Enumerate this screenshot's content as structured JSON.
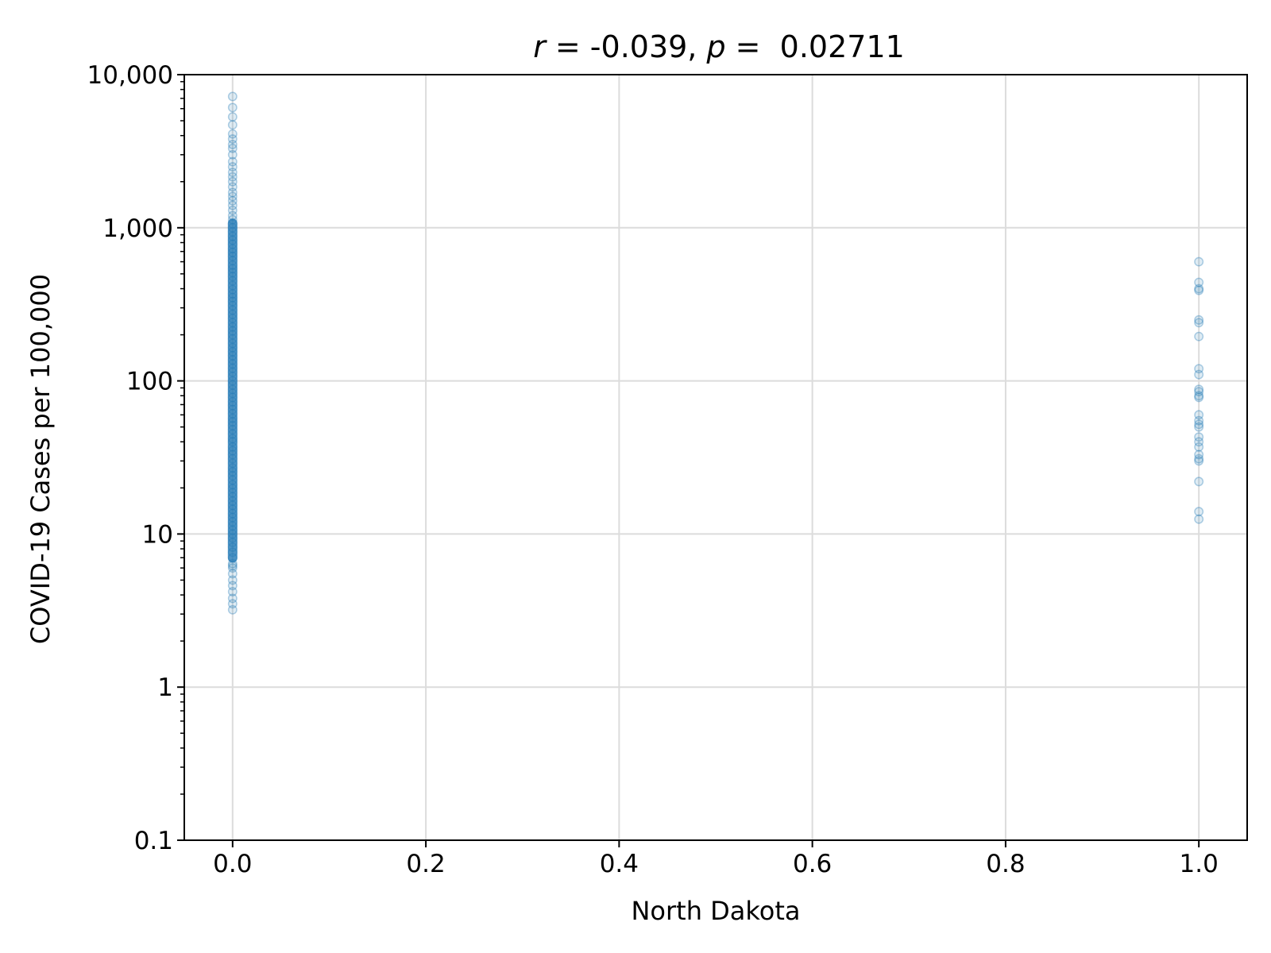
{
  "chart_data": {
    "type": "scatter",
    "title": {
      "r_symbol": "r",
      "r_text": " = -0.039, ",
      "p_symbol": "p",
      "p_text": " =  0.02711"
    },
    "xlabel": "North Dakota",
    "ylabel": "COVID-19 Cases per 100,000",
    "xlim": [
      -0.05,
      1.05
    ],
    "ylim": [
      0.1,
      10000
    ],
    "yscale": "log",
    "grid": true,
    "xticks": [
      {
        "value": 0.0,
        "label": "0.0"
      },
      {
        "value": 0.2,
        "label": "0.2"
      },
      {
        "value": 0.4,
        "label": "0.4"
      },
      {
        "value": 0.6,
        "label": "0.6"
      },
      {
        "value": 0.8,
        "label": "0.8"
      },
      {
        "value": 1.0,
        "label": "1.0"
      }
    ],
    "yticks": [
      {
        "value": 0.1,
        "label": "0.1"
      },
      {
        "value": 1,
        "label": "1"
      },
      {
        "value": 10,
        "label": "10"
      },
      {
        "value": 100,
        "label": "100"
      },
      {
        "value": 1000,
        "label": "1,000"
      },
      {
        "value": 10000,
        "label": "10,000"
      }
    ],
    "marker_color": "#1f77b4",
    "series": [
      {
        "x": 0,
        "y": [
          7200,
          6100,
          5300,
          4700,
          4100,
          3800,
          3500,
          3300,
          3000,
          2700,
          2500,
          2300,
          2150,
          2000,
          1850,
          1700,
          1600,
          1500,
          1400,
          1300,
          1200,
          1130,
          1060,
          1000,
          940,
          880,
          830,
          780,
          730,
          690,
          650,
          610,
          570,
          540,
          510,
          480,
          450,
          420,
          395,
          370,
          350,
          330,
          310,
          290,
          272,
          256,
          240,
          225,
          212,
          200,
          188,
          176,
          165,
          155,
          146,
          137,
          129,
          121,
          114,
          107,
          100,
          94,
          88,
          83,
          78,
          73,
          69,
          65,
          61,
          57,
          54,
          51,
          48,
          45,
          42,
          40,
          37,
          35,
          33,
          31,
          29,
          27,
          25.5,
          24,
          22.5,
          21,
          19.8,
          18.6,
          17.5,
          16.4,
          15.4,
          14.5,
          13.6,
          12.8,
          12,
          11.3,
          10.6,
          10,
          9.4,
          8.8,
          8.2,
          7.6,
          7,
          6.4,
          6.2,
          6,
          5.5,
          5,
          4.6,
          4.2,
          3.8,
          3.5,
          3.2
        ]
      },
      {
        "x": 1,
        "y": [
          600,
          440,
          400,
          390,
          250,
          240,
          195,
          120,
          110,
          88,
          85,
          80,
          78,
          60,
          55,
          52,
          50,
          43,
          40,
          37,
          33,
          31,
          30,
          22,
          14,
          12.5
        ]
      }
    ]
  }
}
